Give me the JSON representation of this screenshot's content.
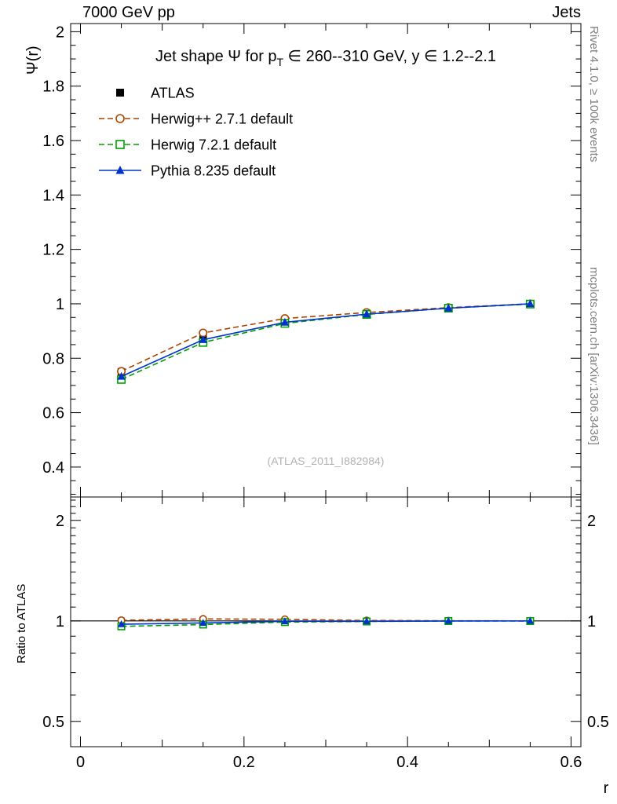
{
  "header": {
    "left": "7000 GeV pp",
    "right": "Jets"
  },
  "side_captions": {
    "top": "Rivet 4.1.0, ≥ 100k events",
    "bottom": "mcplots.cern.ch [arXiv:1306.3436]"
  },
  "watermark": "(ATLAS_2011_I882984)",
  "chart_data": {
    "type": "line",
    "title": "Jet shape Ψ for p_T ∈ 260--310 GeV, y ∈ 1.2--2.1",
    "title_parts": [
      {
        "text": "Jet shape Ψ for p"
      },
      {
        "text": "T",
        "sub": true
      },
      {
        "text": " ∈ 260--310 GeV, y ∈ 1.2--2.1"
      }
    ],
    "x": [
      0.05,
      0.15,
      0.25,
      0.35,
      0.45,
      0.55
    ],
    "series": [
      {
        "name": "ATLAS",
        "color": "#000000",
        "marker": "square-filled",
        "line": "none",
        "values": [
          0.75,
          0.88,
          0.935,
          0.965,
          0.985,
          1.0
        ],
        "ratio": [
          1.0,
          1.0,
          1.0,
          1.0,
          1.0,
          1.0
        ]
      },
      {
        "name": "Herwig++ 2.7.1 default",
        "color": "#aa4400",
        "marker": "circle-open",
        "line": "dashed",
        "values": [
          0.752,
          0.893,
          0.946,
          0.968,
          0.986,
          1.0
        ],
        "ratio": [
          1.004,
          1.014,
          1.011,
          1.003,
          1.001,
          1.0
        ]
      },
      {
        "name": "Herwig 7.2.1 default",
        "color": "#00a000",
        "marker": "square-open",
        "line": "dashed",
        "values": [
          0.722,
          0.858,
          0.928,
          0.961,
          0.984,
          0.999
        ],
        "ratio": [
          0.963,
          0.975,
          0.992,
          0.996,
          0.999,
          0.999
        ]
      },
      {
        "name": "Pythia 8.235 default",
        "color": "#0033cc",
        "marker": "triangle-filled",
        "line": "solid",
        "values": [
          0.733,
          0.868,
          0.932,
          0.962,
          0.984,
          1.0
        ],
        "ratio": [
          0.977,
          0.986,
          0.997,
          0.997,
          0.999,
          1.0
        ]
      }
    ],
    "axes": {
      "x": {
        "label": "r",
        "min": -0.012,
        "max": 0.612,
        "major": [
          0,
          0.2,
          0.4,
          0.6
        ],
        "minor_step": 0.05,
        "scale": "linear"
      },
      "y_main": {
        "label": "Ψ(r)",
        "min": 0.29,
        "max": 2.03,
        "major": [
          0.4,
          0.6,
          0.8,
          1,
          1.2,
          1.4,
          1.6,
          1.8,
          2
        ],
        "minor_step": 0.05,
        "scale": "linear"
      },
      "y_ratio": {
        "label": "Ratio to ATLAS",
        "min": 0.42,
        "max": 2.35,
        "major": [
          0.5,
          1,
          2
        ],
        "minor": [
          0.6,
          0.7,
          0.8,
          0.9,
          1.1,
          1.2,
          1.3,
          1.4,
          1.5,
          1.6,
          1.7,
          1.8,
          1.9,
          2.1,
          2.2,
          2.3
        ],
        "scale": "log"
      }
    },
    "ratio_reference": 1,
    "legend_position": "top-left",
    "grid": false
  }
}
